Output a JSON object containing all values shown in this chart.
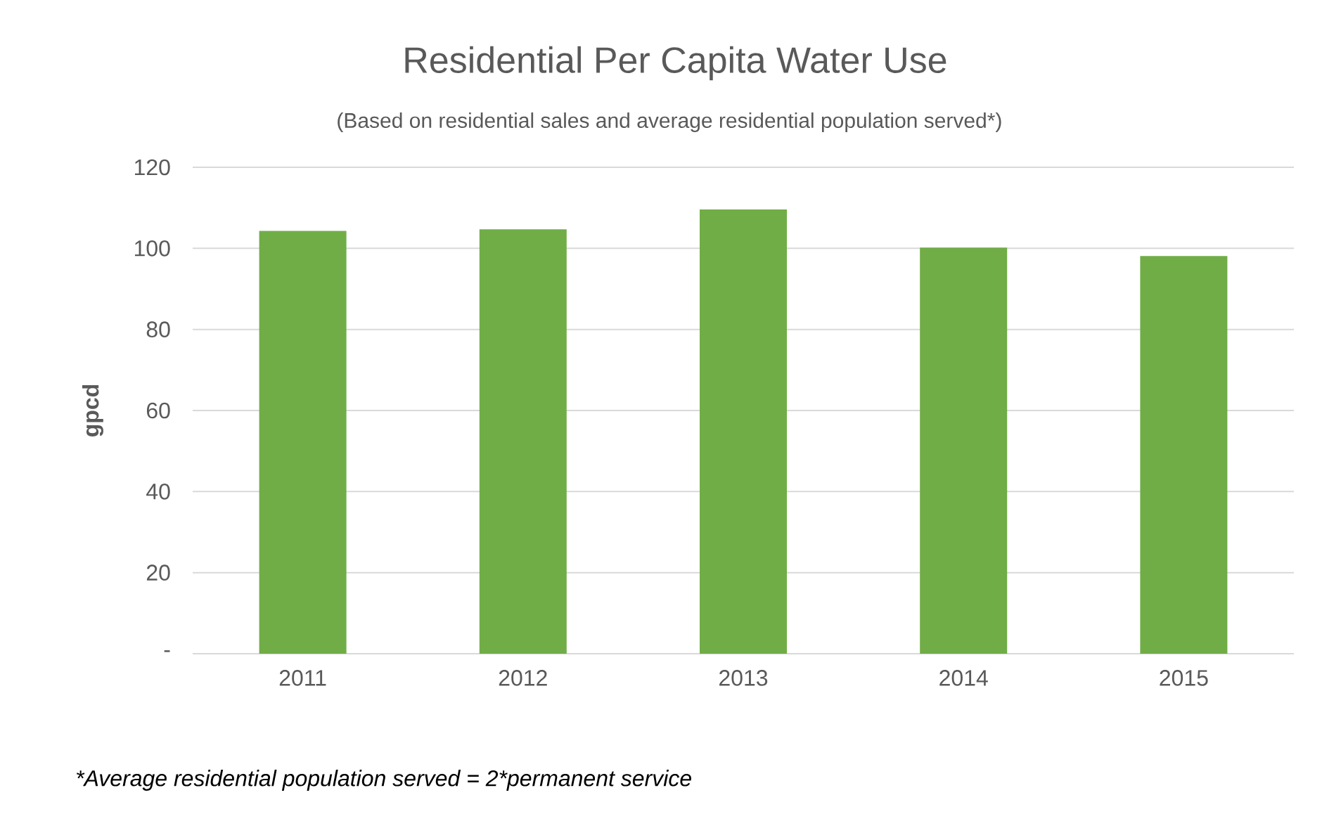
{
  "chart_data": {
    "type": "bar",
    "title": "Residential Per Capita Water Use",
    "subtitle": "(Based on residential sales and average residential population served*)",
    "ylabel": "gpcd",
    "categories": [
      "2011",
      "2012",
      "2013",
      "2014",
      "2015"
    ],
    "values": [
      104.3,
      104.7,
      109.6,
      100.2,
      98.1
    ],
    "color": "#70ad47",
    "ylim": [
      0,
      120
    ],
    "yticks": [
      {
        "value": 0,
        "label": "-"
      },
      20,
      40,
      60,
      80,
      100,
      120
    ],
    "grid": "y",
    "annotations": [
      "*Average residential population served = 2*permanent service"
    ]
  }
}
